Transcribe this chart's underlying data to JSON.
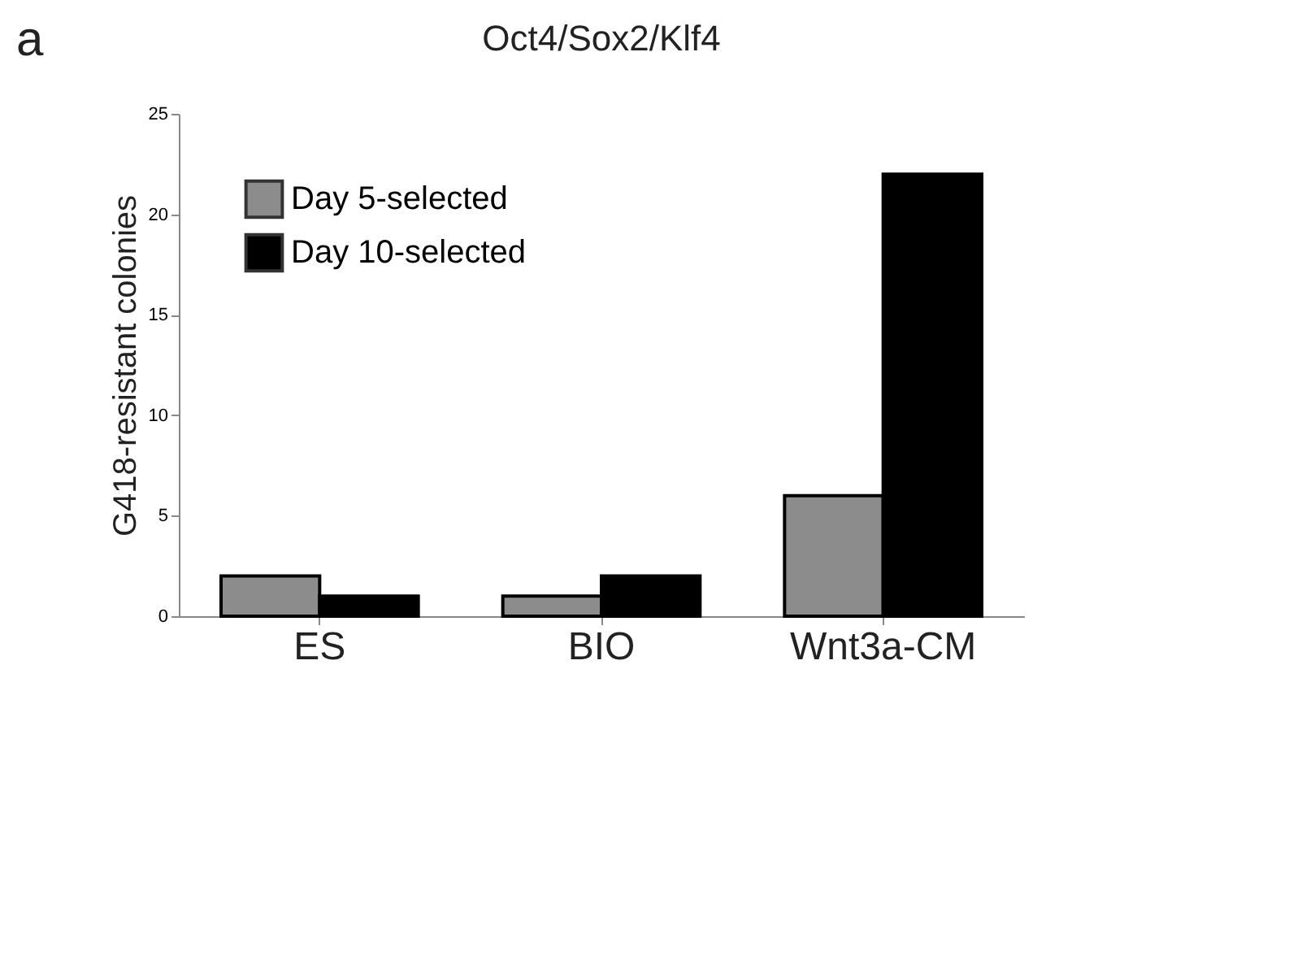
{
  "chart_data": {
    "type": "bar",
    "title": "Oct4/Sox2/Klf4",
    "ylabel": "G418-resistant colonies",
    "annotations": [
      "a"
    ],
    "categories": [
      "ES",
      "BIO",
      "Wnt3a-CM"
    ],
    "series": [
      {
        "name": "Day 5-selected",
        "color": "#8c8c8c",
        "values": [
          2,
          1,
          6
        ]
      },
      {
        "name": "Day 10-selected",
        "color": "#000000",
        "values": [
          1,
          2,
          22
        ]
      }
    ],
    "ylim": [
      0,
      25
    ],
    "yticks": [
      0,
      5,
      10,
      15,
      20,
      25
    ],
    "grid": false,
    "legend": "top left"
  }
}
